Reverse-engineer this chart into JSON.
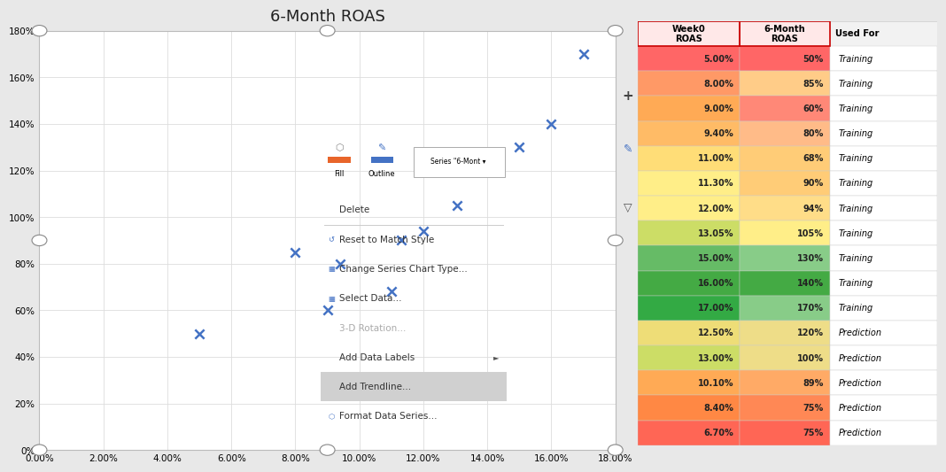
{
  "title": "6-Month ROAS",
  "scatter_x": [
    5.0,
    8.0,
    9.0,
    9.4,
    11.0,
    11.3,
    12.0,
    13.05,
    15.0,
    16.0,
    17.0
  ],
  "scatter_y": [
    50,
    85,
    60,
    80,
    68,
    90,
    94,
    105,
    130,
    140,
    170
  ],
  "xlim_pct": [
    0.0,
    18.0
  ],
  "ylim_pct": [
    0,
    180
  ],
  "xticks_pct": [
    0.0,
    2.0,
    4.0,
    6.0,
    8.0,
    10.0,
    12.0,
    14.0,
    16.0,
    18.0
  ],
  "yticks_pct": [
    0,
    20,
    40,
    60,
    80,
    100,
    120,
    140,
    160,
    180
  ],
  "table_week0": [
    5.0,
    8.0,
    9.0,
    9.4,
    11.0,
    11.3,
    12.0,
    13.05,
    15.0,
    16.0,
    17.0,
    12.5,
    13.0,
    10.1,
    8.4,
    6.7
  ],
  "table_6month": [
    50,
    85,
    60,
    80,
    68,
    90,
    94,
    105,
    130,
    140,
    170,
    120,
    100,
    89,
    75,
    75
  ],
  "table_used_for": [
    "Training",
    "Training",
    "Training",
    "Training",
    "Training",
    "Training",
    "Training",
    "Training",
    "Training",
    "Training",
    "Training",
    "Prediction",
    "Prediction",
    "Prediction",
    "Prediction",
    "Prediction"
  ],
  "row_colors_week0": [
    "#FF6666",
    "#FF9966",
    "#FFAA55",
    "#FFBB66",
    "#FFDD77",
    "#FFEE88",
    "#FFEE88",
    "#CCDD66",
    "#66BB66",
    "#44AA44",
    "#33AA44",
    "#EEDD77",
    "#CCDD66",
    "#FFAA55",
    "#FF8844",
    "#FF6655"
  ],
  "row_colors_6month": [
    "#FF6666",
    "#FFCC88",
    "#FF8877",
    "#FFBB88",
    "#FFCC77",
    "#FFCC77",
    "#FFDD88",
    "#FFEE88",
    "#88CC88",
    "#44AA44",
    "#88CC88",
    "#EEDD88",
    "#EEDD88",
    "#FFAA66",
    "#FF8855",
    "#FF6655"
  ],
  "context_menu_items": [
    "Delete",
    "Reset to Match Style",
    "Change Series Chart Type...",
    "Select Data...",
    "3-D Rotation...",
    "Add Data Labels",
    "Add Trendline...",
    "Format Data Series..."
  ],
  "highlighted_menu_item": "Add Trendline...",
  "scatter_color": "#4472C4",
  "fig_bg": "#E8E8E8",
  "chart_bg": "#FFFFFF",
  "grid_color": "#DDDDDD",
  "table_bg": "#F2F2F2"
}
